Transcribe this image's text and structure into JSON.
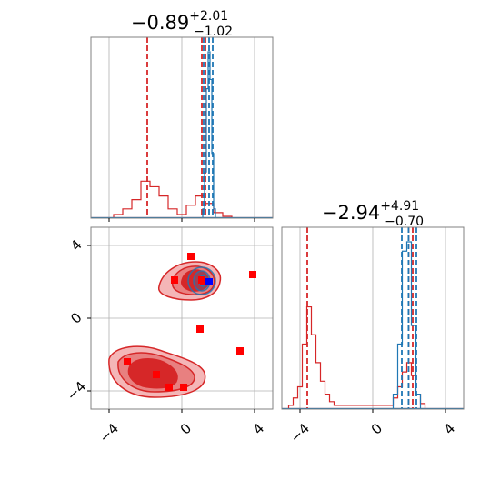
{
  "chart_data": [
    {
      "type": "histogram",
      "panel": "marginal-x",
      "title": {
        "median": "−0.89",
        "upper": "+2.01",
        "lower": "−1.02"
      },
      "xlim": [
        -5,
        5
      ],
      "grid": true,
      "ticks": [
        -4,
        0,
        4
      ],
      "series": [
        {
          "color": "#d62728",
          "hist_x": [
            -3.5,
            -3.0,
            -2.5,
            -2.0,
            -1.5,
            -1.0,
            -0.5,
            0.0,
            0.5,
            1.0,
            1.5,
            2.0,
            2.5
          ],
          "hist_y": [
            0.02,
            0.05,
            0.1,
            0.2,
            0.17,
            0.12,
            0.05,
            0.02,
            0.07,
            0.12,
            0.08,
            0.03,
            0.01
          ],
          "quantiles": [
            -1.9,
            1.1,
            1.3
          ]
        },
        {
          "color": "#1f77b4",
          "hist_x": [
            1.2,
            1.3,
            1.4,
            1.5,
            1.6,
            1.7,
            1.8
          ],
          "hist_y": [
            0.05,
            0.25,
            0.7,
            0.9,
            0.75,
            0.35,
            0.05
          ],
          "quantiles": [
            1.2,
            1.5,
            1.7
          ]
        }
      ]
    },
    {
      "type": "histogram",
      "panel": "marginal-y",
      "title": {
        "median": "−2.94",
        "upper": "+4.91",
        "lower": "−0.70"
      },
      "xlim": [
        -5,
        5
      ],
      "grid": true,
      "ticks": [
        -4,
        0,
        4
      ],
      "series": [
        {
          "color": "#d62728",
          "hist_x": [
            -4.5,
            -4.25,
            -4.0,
            -3.75,
            -3.5,
            -3.25,
            -3.0,
            -2.75,
            -2.5,
            -2.25,
            -2.0,
            1.0,
            1.25,
            1.5,
            1.75,
            2.0,
            2.25,
            2.5,
            2.75
          ],
          "hist_y": [
            0.02,
            0.06,
            0.12,
            0.35,
            0.55,
            0.4,
            0.25,
            0.15,
            0.08,
            0.04,
            0.02,
            0.02,
            0.06,
            0.12,
            0.2,
            0.25,
            0.18,
            0.08,
            0.03
          ],
          "quantiles": [
            -3.6,
            1.97,
            2.2
          ]
        },
        {
          "color": "#1f77b4",
          "hist_x": [
            1.25,
            1.5,
            1.75,
            2.0,
            2.25,
            2.5
          ],
          "hist_y": [
            0.08,
            0.35,
            0.85,
            0.9,
            0.45,
            0.08
          ],
          "quantiles": [
            1.6,
            1.97,
            2.4
          ]
        }
      ]
    },
    {
      "type": "scatter",
      "panel": "joint-2d",
      "xlim": [
        -5,
        5
      ],
      "ylim": [
        -5,
        5
      ],
      "grid": true,
      "xticks": [
        -4,
        0,
        4
      ],
      "yticks": [
        -4,
        0,
        4
      ],
      "points": {
        "color": "#ff0000",
        "marker": "square",
        "x": [
          0.5,
          -0.4,
          1.1,
          1.3,
          1.2,
          3.9,
          1.0,
          3.2,
          -3.0,
          -1.4,
          -0.7,
          0.1
        ],
        "y": [
          3.4,
          2.1,
          2.1,
          2.0,
          2.0,
          2.4,
          -0.6,
          -1.8,
          -2.4,
          -3.1,
          -3.8,
          -3.8
        ]
      },
      "truth": {
        "color": "#0000ff",
        "marker": "square",
        "x": 1.5,
        "y": 2.0
      },
      "contours": {
        "red_fill": "#d62728",
        "blue_line": "#1f77b4"
      }
    }
  ]
}
